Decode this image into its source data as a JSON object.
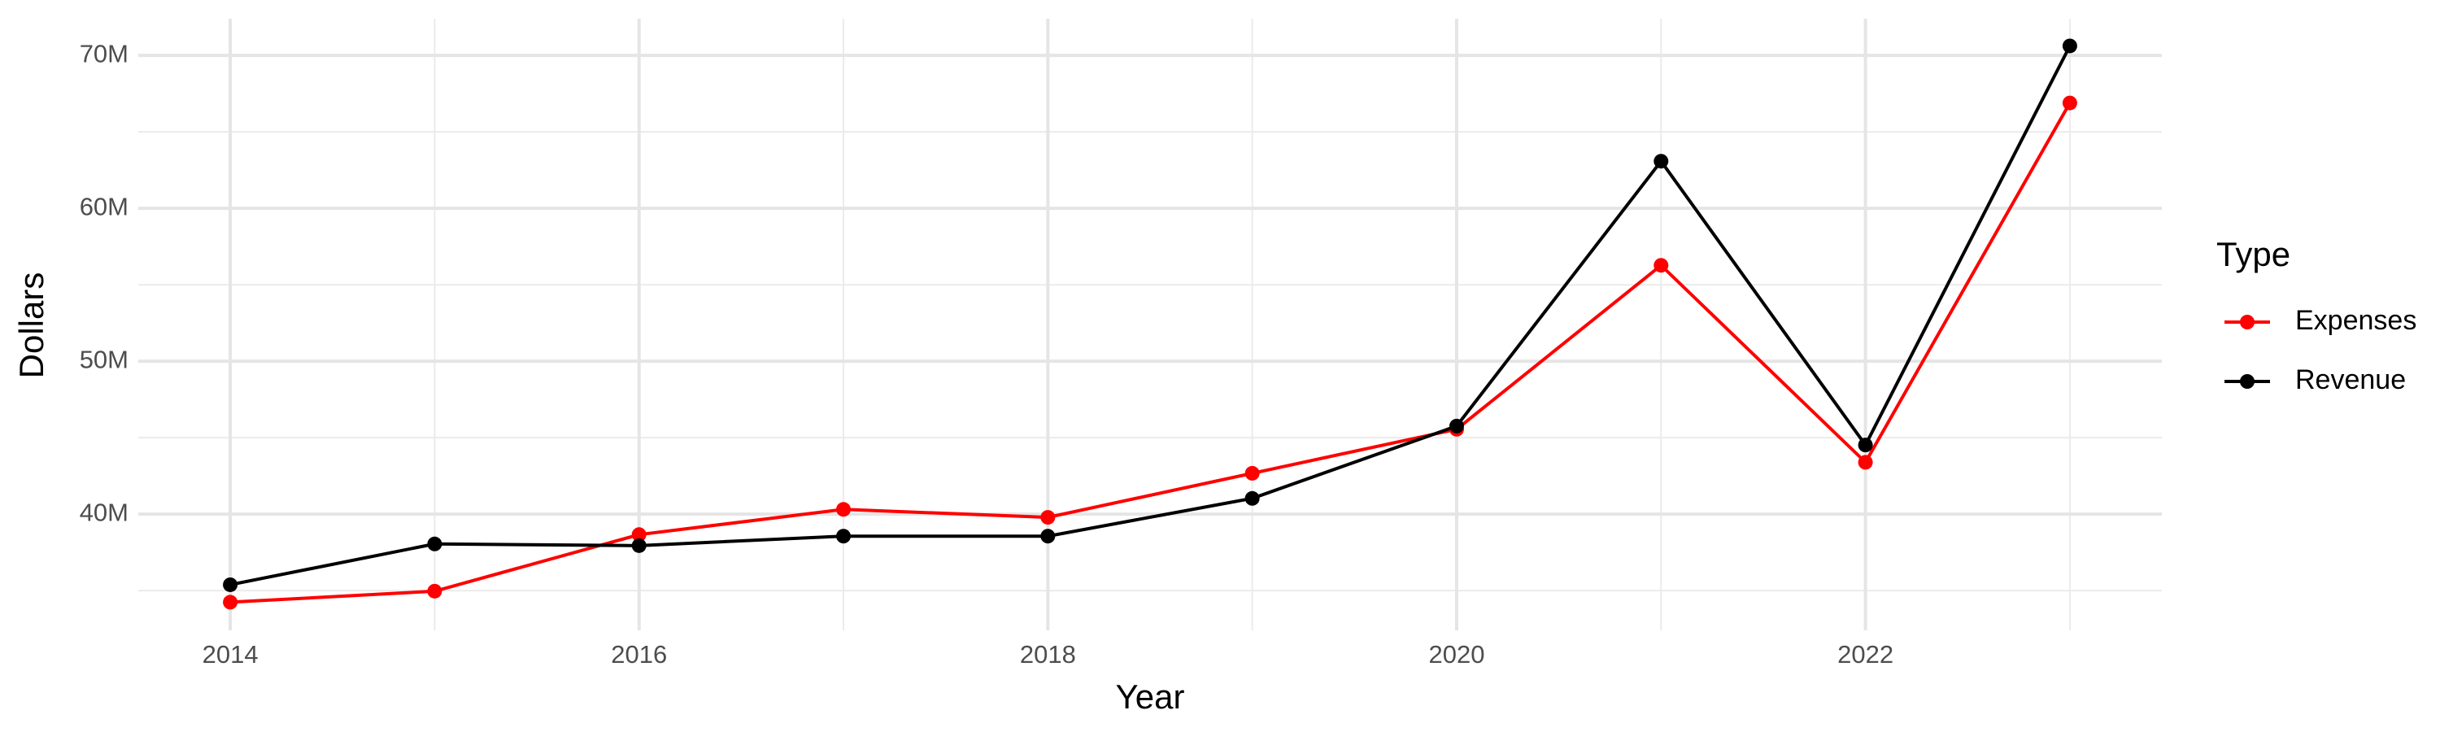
{
  "chart_data": {
    "type": "line",
    "x_label": "Year",
    "y_label": "Dollars",
    "legend_title": "Type",
    "x": [
      2014,
      2015,
      2016,
      2017,
      2018,
      2019,
      2020,
      2021,
      2022,
      2023
    ],
    "series": [
      {
        "name": "Expenses",
        "color": "#ff0000",
        "values": [
          34240000,
          34960000,
          38660000,
          40310000,
          39790000,
          42670000,
          45550000,
          56270000,
          43390000,
          66890000
        ]
      },
      {
        "name": "Revenue",
        "color": "#000000",
        "values": [
          35380000,
          38050000,
          37940000,
          38560000,
          38560000,
          41030000,
          45760000,
          63080000,
          44520000,
          70620000
        ]
      }
    ],
    "xlim": [
      2013.55,
      2023.45
    ],
    "xticks": [
      2014,
      2016,
      2018,
      2020,
      2022
    ],
    "ylim": [
      32400000,
      72400000
    ],
    "yticks": [
      {
        "value": 40000000,
        "label": "40M"
      },
      {
        "value": 50000000,
        "label": "50M"
      },
      {
        "value": 60000000,
        "label": "60M"
      },
      {
        "value": 70000000,
        "label": "70M"
      }
    ],
    "grid": true,
    "legend_position": "right"
  }
}
